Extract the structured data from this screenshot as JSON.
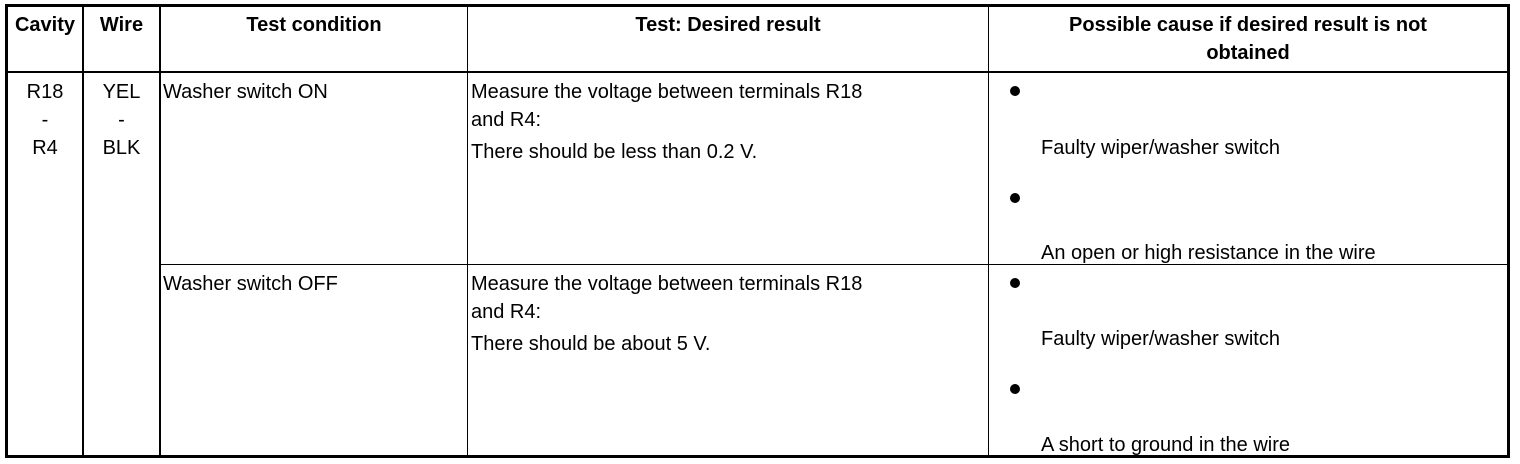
{
  "headers": {
    "cavity": "Cavity",
    "wire": "Wire",
    "test_condition": "Test condition",
    "desired_result": "Test: Desired result",
    "possible_cause_1": "Possible cause if desired result is not",
    "possible_cause_2": "obtained"
  },
  "group": {
    "cavity": [
      "R18",
      "-",
      "R4"
    ],
    "wire": [
      "YEL",
      "-",
      "BLK"
    ]
  },
  "rows": [
    {
      "condition": "Washer switch ON",
      "result_line1": "Measure the voltage between terminals R18",
      "result_line2": "and R4:",
      "result_line3": "There should be less than 0.2 V.",
      "causes": [
        "Faulty wiper/washer switch",
        "An open or high resistance in the wire"
      ]
    },
    {
      "condition": "Washer switch OFF",
      "result_line1": "Measure the voltage between terminals R18",
      "result_line2": "and R4:",
      "result_line3": "There should be about 5 V.",
      "causes": [
        "Faulty wiper/washer switch",
        "A short to ground in the wire"
      ]
    }
  ]
}
